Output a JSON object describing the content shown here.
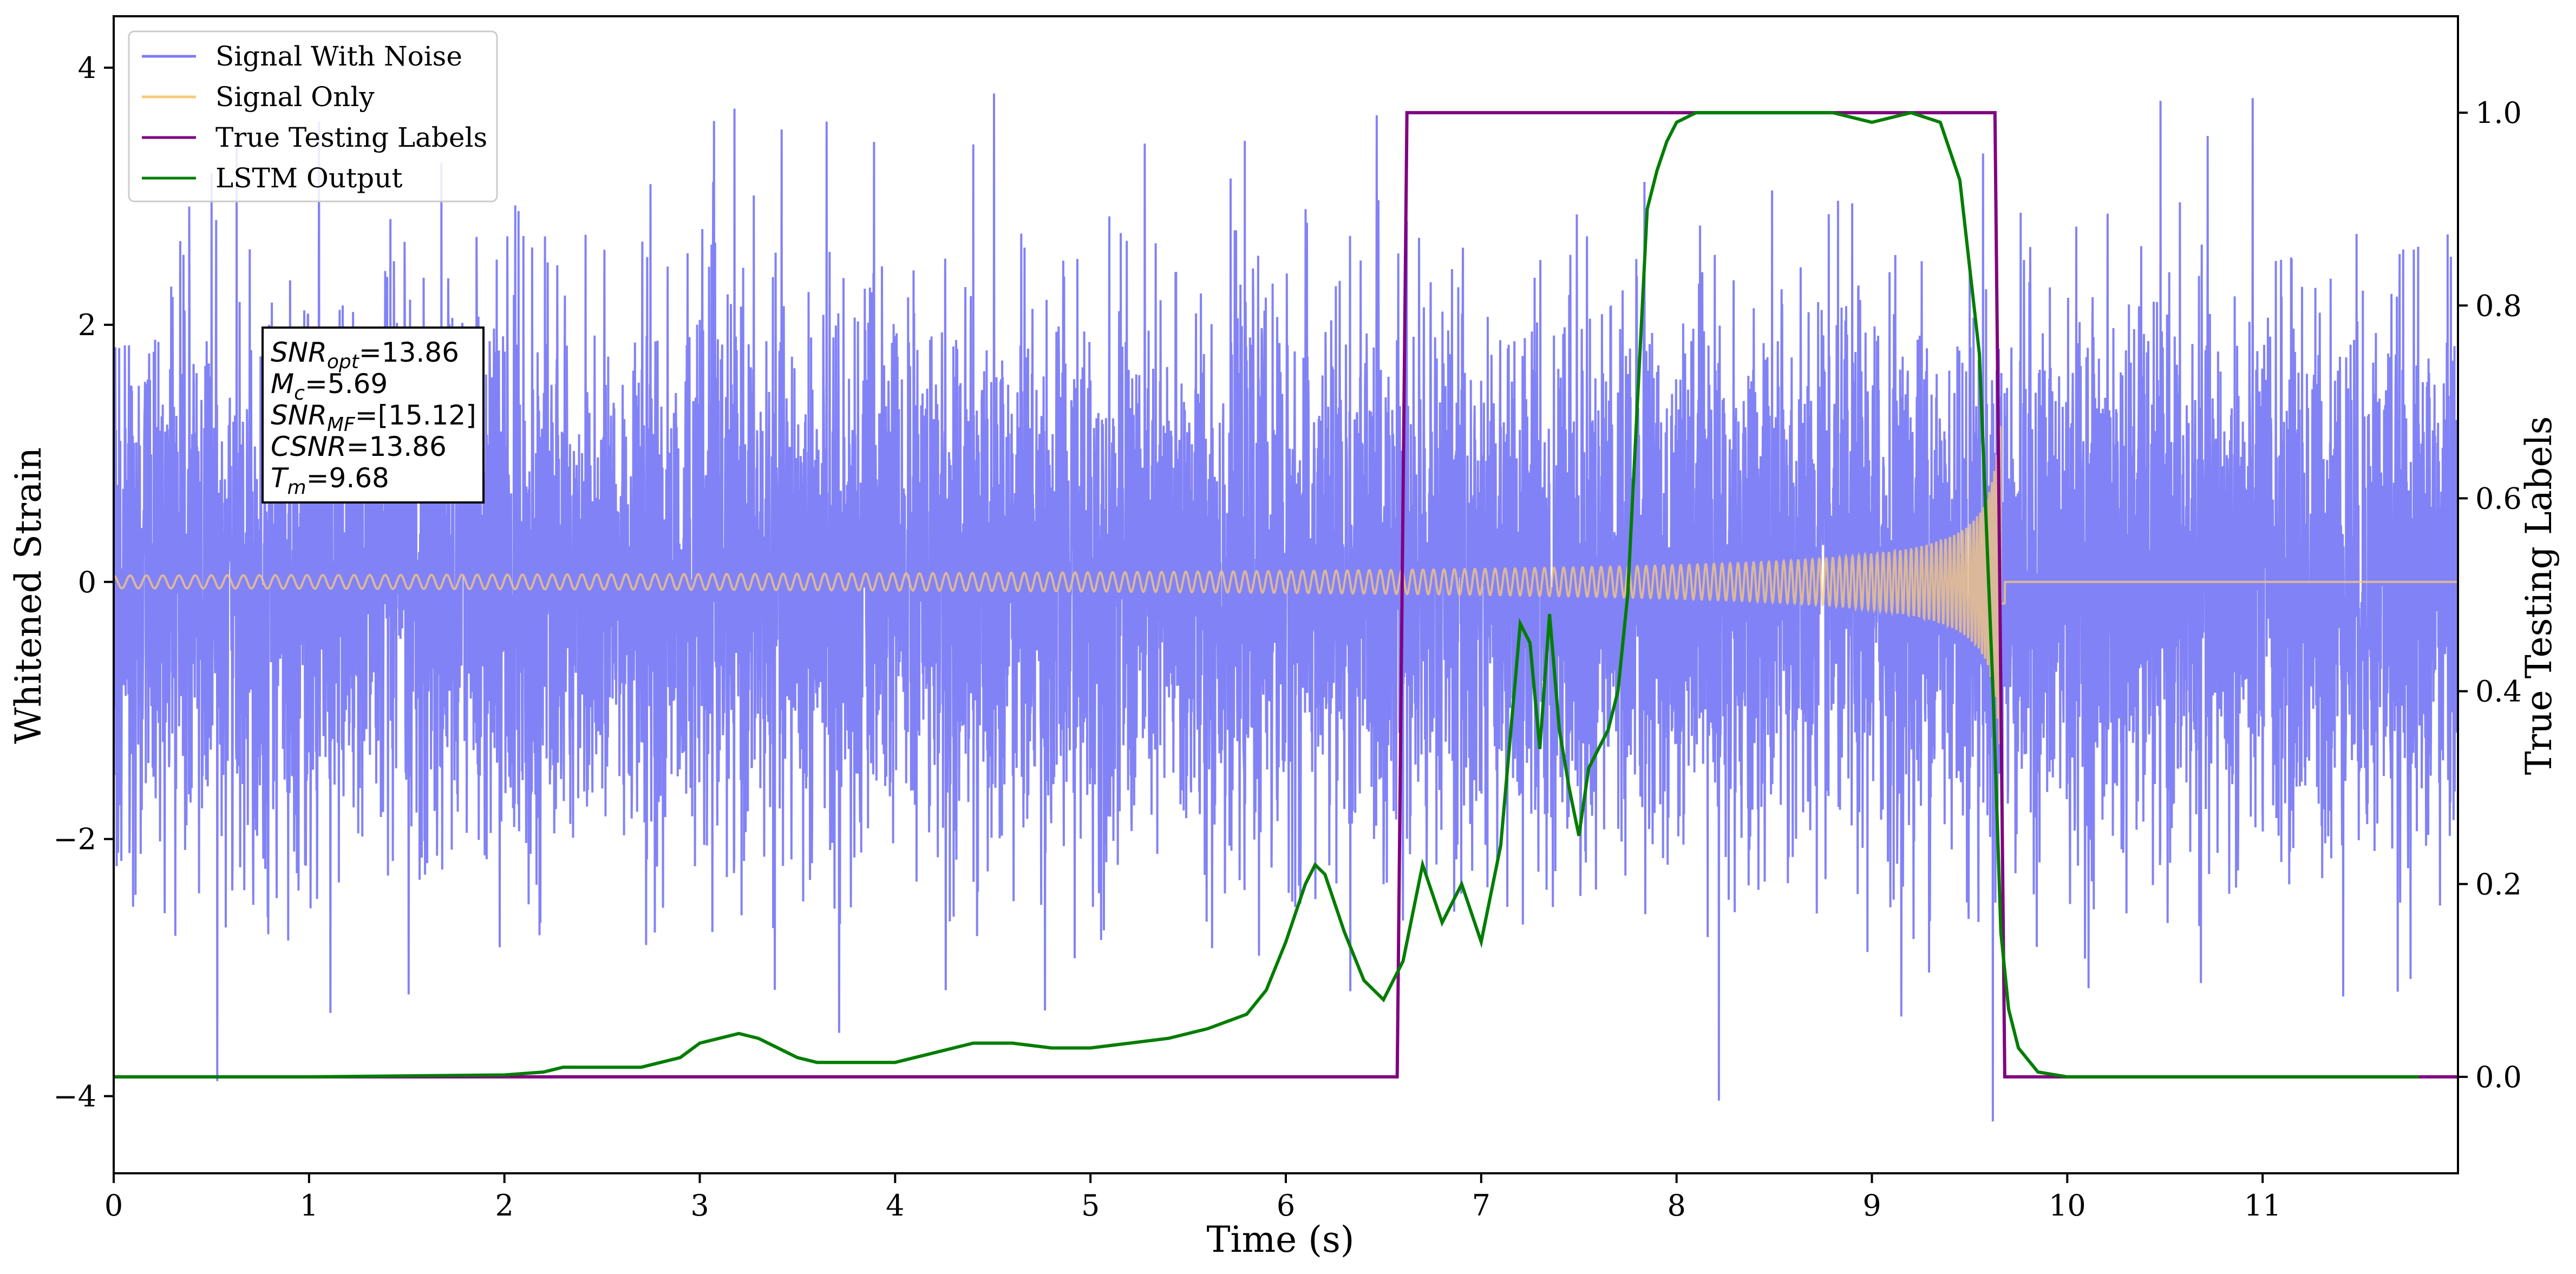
{
  "chart_data": {
    "type": "line",
    "title": "",
    "xlabel": "Time (s)",
    "ylabel": "Whitened Strain",
    "y2label": "True Testing Labels",
    "xlim": [
      0,
      12
    ],
    "ylim": [
      -4.6,
      4.4
    ],
    "y2lim": [
      -0.1,
      1.1
    ],
    "x_ticks": [
      0,
      1,
      2,
      3,
      4,
      5,
      6,
      7,
      8,
      9,
      10,
      11
    ],
    "y_ticks": [
      -4,
      -2,
      0,
      2,
      4
    ],
    "y2_ticks": [
      0.0,
      0.2,
      0.4,
      0.6,
      0.8,
      1.0
    ],
    "grid": false,
    "legend_position": "top-left",
    "series": [
      {
        "name": "Signal With Noise",
        "color": "#7b7bf7",
        "axis": "left",
        "description_level": "noise",
        "envelope_abs_max": 3.8,
        "typical_abs": 1.0,
        "x_range": [
          0,
          12
        ]
      },
      {
        "name": "Signal Only",
        "color": "#f8c97a",
        "axis": "left",
        "chirp": {
          "start_amp": 0.05,
          "end_amp": 0.85,
          "peak": 1.3,
          "merger_time": 9.68,
          "end_time": 12
        }
      },
      {
        "name": "True Testing Labels",
        "color": "#800080",
        "axis": "right",
        "x": [
          0,
          6.57,
          6.62,
          9.63,
          9.68,
          12
        ],
        "y": [
          0,
          0,
          1,
          1,
          0,
          0
        ]
      },
      {
        "name": "LSTM Output",
        "color": "#007d00",
        "axis": "right",
        "x": [
          0,
          0.5,
          1.0,
          1.5,
          2.0,
          2.2,
          2.3,
          2.5,
          2.7,
          2.9,
          3.0,
          3.1,
          3.2,
          3.3,
          3.4,
          3.5,
          3.6,
          3.8,
          4.0,
          4.2,
          4.4,
          4.6,
          4.8,
          5.0,
          5.2,
          5.4,
          5.6,
          5.8,
          5.9,
          6.0,
          6.1,
          6.15,
          6.2,
          6.3,
          6.4,
          6.5,
          6.6,
          6.7,
          6.8,
          6.9,
          7.0,
          7.1,
          7.2,
          7.25,
          7.3,
          7.35,
          7.4,
          7.45,
          7.5,
          7.55,
          7.6,
          7.65,
          7.7,
          7.75,
          7.8,
          7.85,
          7.9,
          7.95,
          8.0,
          8.1,
          8.2,
          8.3,
          8.5,
          8.8,
          9.0,
          9.2,
          9.35,
          9.45,
          9.55,
          9.62,
          9.66,
          9.7,
          9.75,
          9.85,
          10.0,
          10.5,
          11.0,
          11.8
        ],
        "y": [
          0.0,
          0.0,
          0.0,
          0.001,
          0.002,
          0.005,
          0.01,
          0.01,
          0.01,
          0.02,
          0.035,
          0.04,
          0.045,
          0.04,
          0.03,
          0.02,
          0.015,
          0.015,
          0.015,
          0.025,
          0.035,
          0.035,
          0.03,
          0.03,
          0.035,
          0.04,
          0.05,
          0.065,
          0.09,
          0.14,
          0.2,
          0.22,
          0.21,
          0.15,
          0.1,
          0.08,
          0.12,
          0.22,
          0.16,
          0.2,
          0.14,
          0.24,
          0.47,
          0.45,
          0.34,
          0.48,
          0.36,
          0.3,
          0.25,
          0.32,
          0.34,
          0.36,
          0.4,
          0.5,
          0.7,
          0.9,
          0.94,
          0.97,
          0.99,
          1.0,
          1.0,
          1.0,
          1.0,
          1.0,
          0.99,
          1.0,
          0.99,
          0.93,
          0.75,
          0.4,
          0.15,
          0.07,
          0.03,
          0.005,
          0.0,
          0.0,
          0.0,
          0.0
        ]
      }
    ],
    "annotation": {
      "lines": [
        {
          "key": "SNR",
          "sub": "opt",
          "value": "=13.86"
        },
        {
          "key": "M",
          "sub": "c",
          "value": "=5.69"
        },
        {
          "key": "SNR",
          "sub": "MF",
          "value": "=[15.12]"
        },
        {
          "key": "CSNR",
          "sub": "",
          "value": "=13.86"
        },
        {
          "key": "T",
          "sub": "m",
          "value": "=9.68"
        }
      ]
    }
  }
}
